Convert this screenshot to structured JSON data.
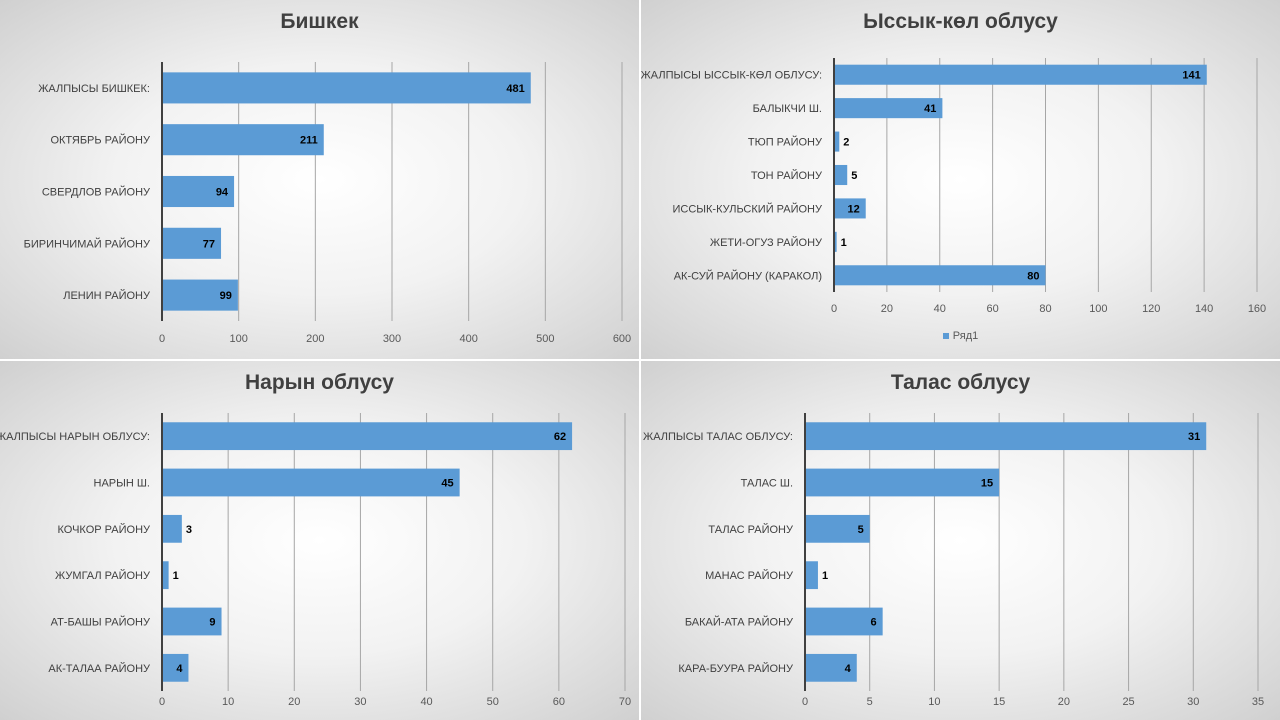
{
  "chart_data": [
    {
      "type": "bar",
      "orientation": "horizontal",
      "title": "Бишкек",
      "categories": [
        "ЖАЛПЫСЫ  БИШКЕК:",
        "ОКТЯБРЬ РАЙОНУ",
        "СВЕРДЛОВ РАЙОНУ",
        "БИРИНЧИМАЙ РАЙОНУ",
        "ЛЕНИН РАЙОНУ"
      ],
      "values": [
        481,
        211,
        94,
        77,
        99
      ],
      "xlim": [
        0,
        600
      ],
      "ticks": [
        0,
        100,
        200,
        300,
        400,
        500,
        600
      ],
      "legend": null,
      "color": "#5b9bd5"
    },
    {
      "type": "bar",
      "orientation": "horizontal",
      "title": "Ыссык-көл облусу",
      "categories": [
        "ЖАЛПЫСЫ  ЫССЫК-КӨЛ ОБЛУСУ:",
        "БАЛЫКЧИ Ш.",
        "ТЮП РАЙОНУ",
        "ТОН РАЙОНУ",
        "ИССЫК-КУЛЬСКИЙ РАЙОНУ",
        "ЖЕТИ-ОГУЗ РАЙОНУ",
        "АК-СУЙ РАЙОНУ (КАРАКОЛ)"
      ],
      "values": [
        141,
        41,
        2,
        5,
        12,
        1,
        80
      ],
      "xlim": [
        0,
        160
      ],
      "ticks": [
        0,
        20,
        40,
        60,
        80,
        100,
        120,
        140,
        160
      ],
      "legend": "Ряд1",
      "color": "#5b9bd5"
    },
    {
      "type": "bar",
      "orientation": "horizontal",
      "title": "Нарын облусу",
      "categories": [
        "ЖАЛПЫСЫ  НАРЫН ОБЛУСУ:",
        "НАРЫН Ш.",
        "КОЧКОР РАЙОНУ",
        "ЖУМГАЛ РАЙОНУ",
        "АТ-БАШЫ РАЙОНУ",
        "АК-ТАЛАА РАЙОНУ"
      ],
      "values": [
        62,
        45,
        3,
        1,
        9,
        4
      ],
      "xlim": [
        0,
        70
      ],
      "ticks": [
        0,
        10,
        20,
        30,
        40,
        50,
        60,
        70
      ],
      "legend": null,
      "color": "#5b9bd5"
    },
    {
      "type": "bar",
      "orientation": "horizontal",
      "title": "Талас облусу",
      "categories": [
        "ЖАЛПЫСЫ  ТАЛАС ОБЛУСУ:",
        "ТАЛАС Ш.",
        "ТАЛАС РАЙОНУ",
        "МАНАС РАЙОНУ",
        "БАКАЙ-АТА РАЙОНУ",
        "КАРА-БУУРА РАЙОНУ"
      ],
      "values": [
        31,
        15,
        5,
        1,
        6,
        4
      ],
      "xlim": [
        0,
        35
      ],
      "ticks": [
        0,
        5,
        10,
        15,
        20,
        25,
        30,
        35
      ],
      "legend": null,
      "color": "#5b9bd5"
    }
  ]
}
